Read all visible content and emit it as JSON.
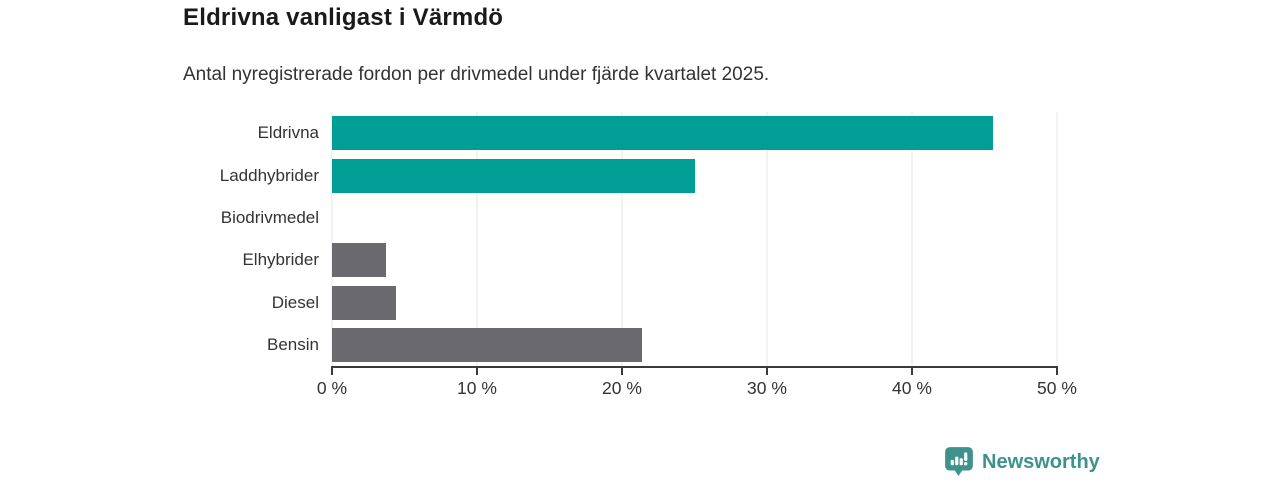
{
  "header": {
    "title": "Eldrivna vanligast i Värmdö",
    "subtitle": "Antal nyregistrerade fordon per drivmedel under fjärde kvartalet 2025."
  },
  "chart_data": {
    "type": "bar",
    "orientation": "horizontal",
    "title": "Eldrivna vanligast i Värmdö",
    "subtitle": "Antal nyregistrerade fordon per drivmedel under fjärde kvartalet 2025.",
    "categories": [
      "Eldrivna",
      "Laddhybrider",
      "Biodrivmedel",
      "Elhybrider",
      "Diesel",
      "Bensin"
    ],
    "values": [
      45.6,
      25.0,
      0,
      3.7,
      4.4,
      21.4
    ],
    "unit": "%",
    "xlabel": "",
    "ylabel": "",
    "xlim": [
      0,
      50
    ],
    "x_ticks": [
      0,
      10,
      20,
      30,
      40,
      50
    ],
    "x_tick_labels": [
      "0 %",
      "10 %",
      "20 %",
      "30 %",
      "40 %",
      "50 %"
    ],
    "bar_colors": [
      "#009E94",
      "#009E94",
      "#009E94",
      "#6A6A6E",
      "#6A6A6E",
      "#6A6A6E"
    ],
    "grid": true,
    "legend": false
  },
  "colors": {
    "accent_teal": "#009E94",
    "neutral_gray": "#6A6A6E",
    "axis": "#3A3A3A",
    "gridline": "#E4E4E4",
    "text": "#333333",
    "title_text": "#1A1A1A",
    "brand_teal": "#3D938B"
  },
  "footer": {
    "brand_name": "Newsworthy",
    "logo_icon": "bar-chart-speech-bubble-icon"
  }
}
